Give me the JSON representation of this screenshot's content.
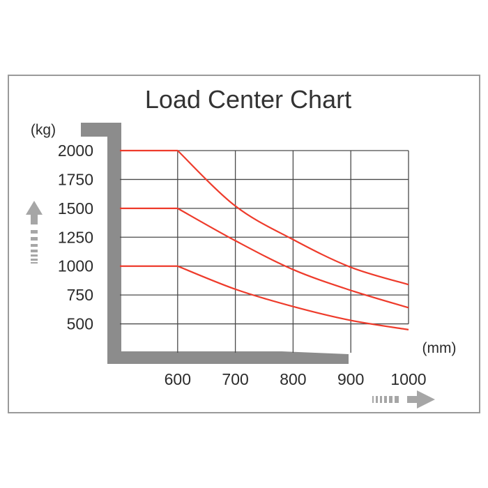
{
  "chart_data": {
    "type": "line",
    "title": "Load Center Chart",
    "ylabel": "(kg)",
    "xlabel": "(mm)",
    "y_ticks": [
      "2000",
      "1750",
      "1500",
      "1250",
      "1000",
      "750",
      "500"
    ],
    "x_ticks": [
      "600",
      "700",
      "800",
      "900",
      "1000"
    ],
    "xlim": [
      500,
      1000
    ],
    "ylim": [
      250,
      2000
    ],
    "grid": true,
    "line_color": "#ee3b2b",
    "series": [
      {
        "x": [
          500,
          600,
          700,
          800,
          900,
          1000
        ],
        "values": [
          2000,
          2000,
          1520,
          1230,
          990,
          840
        ]
      },
      {
        "x": [
          500,
          600,
          700,
          800,
          900,
          1000
        ],
        "values": [
          1500,
          1500,
          1220,
          970,
          790,
          640
        ]
      },
      {
        "x": [
          500,
          600,
          700,
          800,
          900,
          1000
        ],
        "values": [
          1000,
          1000,
          800,
          650,
          530,
          450
        ]
      }
    ]
  },
  "icons": {
    "y_arrow": "up-arrow-icon",
    "x_arrow": "right-arrow-icon"
  }
}
